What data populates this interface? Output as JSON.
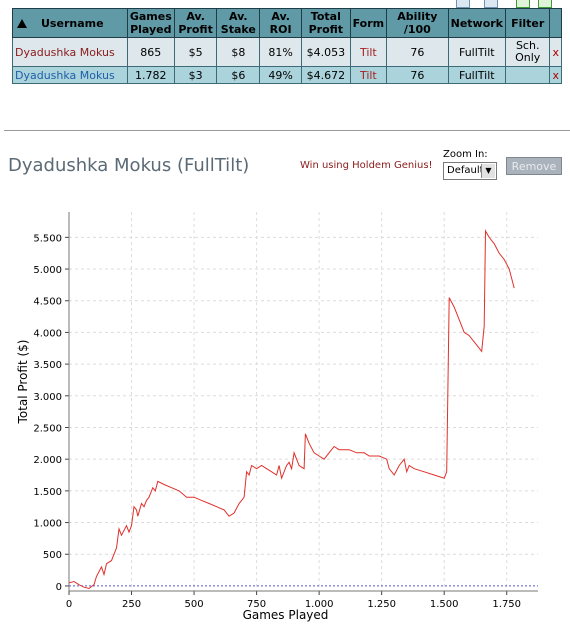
{
  "table": {
    "headers": [
      "Username",
      "Games Played",
      "Av. Profit",
      "Av. Stake",
      "Av. ROI",
      "Total Profit",
      "Form",
      "Ability /100",
      "Network",
      "Filter",
      ""
    ],
    "rows": [
      {
        "username": "Dyadushka Mokus",
        "games": "865",
        "profit": "$5",
        "stake": "$8",
        "roi": "81%",
        "total": "$4.053",
        "form": "Tilt",
        "ability": "76",
        "network": "FullTilt",
        "filter": "Sch. Only",
        "remove": "x"
      },
      {
        "username": "Dyadushka Mokus",
        "games": "1.782",
        "profit": "$3",
        "stake": "$6",
        "roi": "49%",
        "total": "$4.672",
        "form": "Tilt",
        "ability": "76",
        "network": "FullTilt",
        "filter": "",
        "remove": "x"
      }
    ],
    "sort_icon": "up-arrow-icon"
  },
  "player": {
    "title": "Dyadushka Mokus (FullTilt)",
    "win_link": "Win using Holdem Genius!",
    "zoom_label": "Zoom In:",
    "zoom_value": "Default",
    "remove_label": "Remove"
  },
  "colors": {
    "header_bg": "#5f9aa6",
    "row1_bg": "#dde7ec",
    "row2_bg": "#abd3dc",
    "line": "#e0302a",
    "zero_line": "#5656c8"
  },
  "chart_data": {
    "type": "line",
    "xlabel": "Games Played",
    "ylabel": "Total Profit ($)",
    "xlim": [
      0,
      1875
    ],
    "ylim": [
      -80,
      5900
    ],
    "xticks": [
      0,
      250,
      500,
      750,
      1000,
      1250,
      1500,
      1750
    ],
    "xtick_labels": [
      "0",
      "250",
      "500",
      "750",
      "1.000",
      "1.250",
      "1.500",
      "1.750"
    ],
    "yticks": [
      0,
      500,
      1000,
      1500,
      2000,
      2500,
      3000,
      3500,
      4000,
      4500,
      5000,
      5500
    ],
    "ytick_labels": [
      "0",
      "500",
      "1.000",
      "1.500",
      "2.000",
      "2.500",
      "3.000",
      "3.500",
      "4.000",
      "4.500",
      "5.000",
      "5.500"
    ],
    "grid": true,
    "series": [
      {
        "x": [
          0,
          20,
          40,
          60,
          80,
          100,
          110,
          130,
          140,
          150,
          170,
          190,
          200,
          210,
          230,
          240,
          250,
          260,
          270,
          275,
          290,
          300,
          310,
          320,
          335,
          345,
          355,
          380,
          410,
          440,
          470,
          500,
          530,
          560,
          590,
          620,
          640,
          660,
          680,
          690,
          700,
          710,
          720,
          730,
          750,
          770,
          790,
          810,
          830,
          840,
          850,
          870,
          880,
          890,
          900,
          920,
          940,
          945,
          960,
          980,
          1000,
          1020,
          1040,
          1060,
          1080,
          1100,
          1120,
          1150,
          1180,
          1200,
          1240,
          1270,
          1280,
          1300,
          1320,
          1340,
          1350,
          1360,
          1380,
          1420,
          1460,
          1500,
          1510,
          1520,
          1540,
          1560,
          1580,
          1600,
          1630,
          1650,
          1660,
          1665,
          1680,
          1700,
          1720,
          1740,
          1760,
          1780
        ],
        "y": [
          50,
          70,
          20,
          -20,
          -40,
          20,
          150,
          300,
          180,
          350,
          400,
          600,
          900,
          800,
          950,
          850,
          950,
          1250,
          1200,
          1100,
          1300,
          1250,
          1350,
          1400,
          1550,
          1500,
          1650,
          1600,
          1550,
          1500,
          1400,
          1400,
          1350,
          1300,
          1250,
          1200,
          1100,
          1150,
          1300,
          1350,
          1400,
          1800,
          1750,
          1900,
          1850,
          1900,
          1850,
          1800,
          1750,
          1900,
          1700,
          1900,
          1950,
          1850,
          2100,
          1900,
          1850,
          2400,
          2250,
          2100,
          2050,
          2000,
          2100,
          2200,
          2150,
          2150,
          2150,
          2100,
          2100,
          2050,
          2050,
          2000,
          1850,
          1750,
          1900,
          2000,
          1800,
          1900,
          1850,
          1800,
          1750,
          1700,
          1800,
          4550,
          4400,
          4200,
          4000,
          3950,
          3800,
          3700,
          4100,
          5600,
          5500,
          5400,
          5250,
          5150,
          5000,
          4700
        ]
      }
    ]
  }
}
